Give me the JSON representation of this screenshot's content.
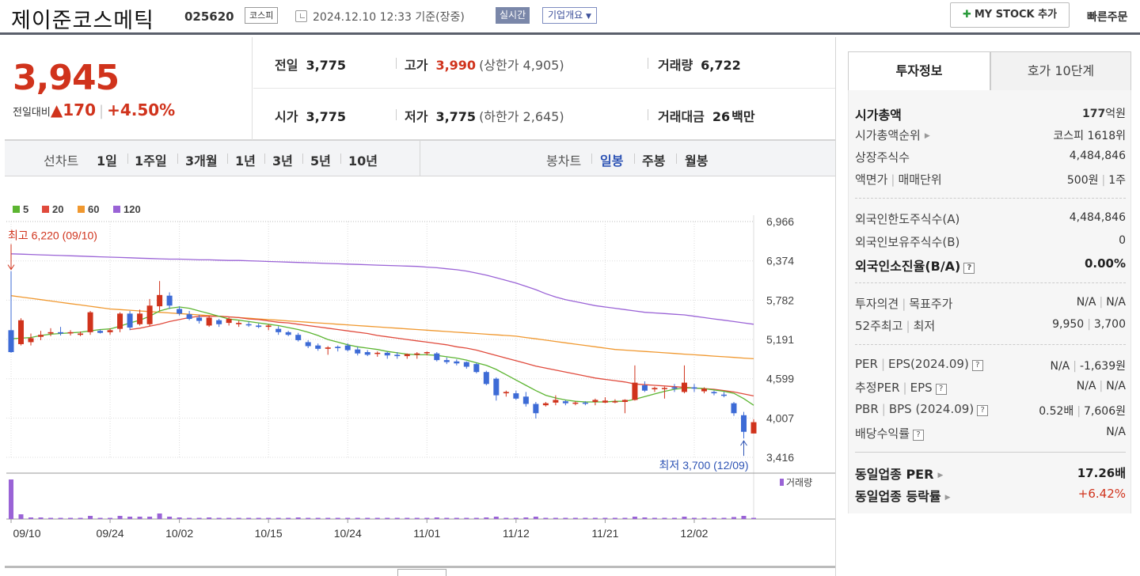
{
  "header": {
    "stock_name": "제이준코스메틱",
    "stock_code": "025620",
    "market": "코스피",
    "datetime": "2024.12.10 12:33",
    "datetime_note": "기준(장중)",
    "realtime_label": "실시간",
    "company_label": "기업개요",
    "mystock_label": "MY STOCK 추가",
    "quick_order_label": "빠른주문"
  },
  "price": {
    "current": "3,945",
    "change_label": "전일대비",
    "change": "170",
    "change_rate": "+4.50%",
    "prev_close_label": "전일",
    "prev_close": "3,775",
    "open_label": "시가",
    "open": "3,775",
    "high_label": "고가",
    "high": "3,990",
    "upper_limit": "(상한가 4,905)",
    "low_label": "저가",
    "low": "3,775",
    "lower_limit": "(하한가 2,645)",
    "volume_label": "거래량",
    "volume": "6,722",
    "amount_label": "거래대금",
    "amount": "26",
    "amount_unit": "백만"
  },
  "period_bar": {
    "line_chart_label": "선차트",
    "line_periods": [
      "1일",
      "1주일",
      "3개월",
      "1년",
      "3년",
      "5년",
      "10년"
    ],
    "candle_label": "봉차트",
    "candle_periods": [
      "일봉",
      "주봉",
      "월봉"
    ],
    "active_candle_index": 0
  },
  "colors": {
    "up": "#d0331c",
    "down": "#3d6bd6",
    "ma5": "#5cb531",
    "ma20": "#e04a3c",
    "ma60": "#f0982f",
    "ma120": "#9a63d6",
    "volume": "#9a63d6"
  },
  "chart_data": {
    "type": "candlestick",
    "legend": [
      "5",
      "20",
      "60",
      "120"
    ],
    "y_ticks": [
      "6,966",
      "6,374",
      "5,782",
      "5,191",
      "4,599",
      "4,007",
      "3,416"
    ],
    "y_tick_values": [
      6966,
      6374,
      5782,
      5191,
      4599,
      4007,
      3416
    ],
    "ylim": [
      3416,
      6966
    ],
    "x_labels": [
      "09/10",
      "09/24",
      "10/02",
      "10/15",
      "10/24",
      "11/01",
      "11/12",
      "11/21",
      "12/02"
    ],
    "x_label_indices": [
      0,
      10,
      17,
      26,
      34,
      42,
      51,
      60,
      69
    ],
    "high_note": "최고 6,220 (09/10)",
    "high_note_index": 0,
    "high_note_value": 6220,
    "low_note": "최저 3,700 (12/09)",
    "low_note_index": 74,
    "low_note_value": 3700,
    "volume_legend": "거래량",
    "candles": [
      [
        5330,
        6220,
        4990,
        5000
      ],
      [
        5120,
        5510,
        5100,
        5480
      ],
      [
        5150,
        5280,
        5100,
        5210
      ],
      [
        5230,
        5320,
        5180,
        5260
      ],
      [
        5280,
        5360,
        5240,
        5300
      ],
      [
        5300,
        5380,
        5250,
        5280
      ],
      [
        5290,
        5330,
        5250,
        5300
      ],
      [
        5260,
        5310,
        5240,
        5280
      ],
      [
        5300,
        5620,
        5260,
        5600
      ],
      [
        5320,
        5340,
        5280,
        5290
      ],
      [
        5300,
        5360,
        5260,
        5330
      ],
      [
        5350,
        5600,
        5300,
        5580
      ],
      [
        5580,
        5620,
        5330,
        5370
      ],
      [
        5420,
        5640,
        5400,
        5580
      ],
      [
        5420,
        5800,
        5390,
        5700
      ],
      [
        5690,
        6070,
        5620,
        5860
      ],
      [
        5850,
        5900,
        5650,
        5700
      ],
      [
        5650,
        5690,
        5550,
        5580
      ],
      [
        5570,
        5620,
        5480,
        5500
      ],
      [
        5520,
        5560,
        5430,
        5470
      ],
      [
        5400,
        5550,
        5380,
        5520
      ],
      [
        5480,
        5500,
        5380,
        5420
      ],
      [
        5440,
        5520,
        5400,
        5500
      ],
      [
        5420,
        5470,
        5380,
        5440
      ],
      [
        5420,
        5460,
        5380,
        5410
      ],
      [
        5400,
        5430,
        5360,
        5380
      ],
      [
        5380,
        5420,
        5330,
        5400
      ],
      [
        5350,
        5390,
        5260,
        5300
      ],
      [
        5300,
        5320,
        5240,
        5260
      ],
      [
        5260,
        5290,
        5160,
        5180
      ],
      [
        5150,
        5180,
        5060,
        5090
      ],
      [
        5100,
        5130,
        5020,
        5050
      ],
      [
        5050,
        5090,
        4960,
        5070
      ],
      [
        5080,
        5100,
        5010,
        5060
      ],
      [
        5100,
        5130,
        5010,
        5030
      ],
      [
        5040,
        5080,
        4950,
        4980
      ],
      [
        5000,
        5030,
        4940,
        4960
      ],
      [
        4980,
        5010,
        4930,
        4990
      ],
      [
        4990,
        5010,
        4900,
        4950
      ],
      [
        4960,
        5000,
        4900,
        4940
      ],
      [
        4940,
        4980,
        4900,
        4970
      ],
      [
        4960,
        5000,
        4900,
        4980
      ],
      [
        4990,
        5010,
        4950,
        5000
      ],
      [
        4980,
        5000,
        4860,
        4880
      ],
      [
        4880,
        4920,
        4820,
        4850
      ],
      [
        4860,
        4890,
        4800,
        4830
      ],
      [
        4850,
        4860,
        4750,
        4780
      ],
      [
        4820,
        4840,
        4680,
        4700
      ],
      [
        4700,
        4720,
        4500,
        4520
      ],
      [
        4600,
        4620,
        4270,
        4350
      ],
      [
        4380,
        4420,
        4330,
        4400
      ],
      [
        4380,
        4420,
        4280,
        4300
      ],
      [
        4330,
        4400,
        4180,
        4220
      ],
      [
        4220,
        4250,
        4000,
        4080
      ],
      [
        4200,
        4250,
        4180,
        4230
      ],
      [
        4240,
        4350,
        4200,
        4280
      ],
      [
        4260,
        4280,
        4200,
        4230
      ],
      [
        4230,
        4260,
        4200,
        4240
      ],
      [
        4240,
        4260,
        4200,
        4230
      ],
      [
        4250,
        4300,
        4200,
        4280
      ],
      [
        4240,
        4320,
        4230,
        4270
      ],
      [
        4250,
        4290,
        4230,
        4260
      ],
      [
        4250,
        4290,
        4080,
        4280
      ],
      [
        4280,
        4800,
        4270,
        4540
      ],
      [
        4500,
        4560,
        4400,
        4420
      ],
      [
        4440,
        4480,
        4400,
        4460
      ],
      [
        4460,
        4480,
        4300,
        4460
      ],
      [
        4470,
        4520,
        4400,
        4450
      ],
      [
        4400,
        4800,
        4380,
        4540
      ],
      [
        4470,
        4520,
        4400,
        4450
      ],
      [
        4410,
        4470,
        4380,
        4450
      ],
      [
        4400,
        4420,
        4350,
        4380
      ],
      [
        4360,
        4400,
        4320,
        4350
      ],
      [
        4230,
        4250,
        4040,
        4080
      ],
      [
        4050,
        4100,
        3700,
        3800
      ],
      [
        3775,
        3990,
        3775,
        3945
      ]
    ],
    "volumes": [
      100,
      12,
      4,
      4,
      3,
      3,
      3,
      3,
      8,
      3,
      3,
      8,
      6,
      6,
      6,
      14,
      6,
      4,
      3,
      3,
      4,
      3,
      3,
      3,
      3,
      3,
      3,
      3,
      3,
      4,
      3,
      3,
      3,
      3,
      3,
      3,
      3,
      3,
      3,
      3,
      3,
      3,
      3,
      4,
      3,
      3,
      3,
      3,
      4,
      6,
      3,
      3,
      4,
      6,
      3,
      3,
      3,
      3,
      3,
      3,
      3,
      3,
      3,
      6,
      4,
      3,
      3,
      3,
      6,
      3,
      3,
      3,
      3,
      5,
      8,
      3
    ],
    "ma5": [
      5200,
      5210,
      5220,
      5250,
      5270,
      5280,
      5290,
      5300,
      5320,
      5340,
      5350,
      5390,
      5440,
      5480,
      5540,
      5620,
      5660,
      5680,
      5660,
      5620,
      5580,
      5540,
      5500,
      5480,
      5460,
      5440,
      5420,
      5400,
      5370,
      5340,
      5300,
      5250,
      5190,
      5150,
      5110,
      5080,
      5060,
      5040,
      5010,
      4990,
      4970,
      4960,
      4960,
      4950,
      4930,
      4910,
      4880,
      4840,
      4800,
      4740,
      4660,
      4580,
      4500,
      4420,
      4350,
      4310,
      4280,
      4260,
      4250,
      4250,
      4250,
      4260,
      4260,
      4290,
      4330,
      4370,
      4410,
      4440,
      4460,
      4460,
      4450,
      4430,
      4410,
      4380,
      4300,
      4200
    ],
    "ma20": [
      null,
      null,
      null,
      null,
      null,
      null,
      null,
      null,
      null,
      null,
      null,
      null,
      5340,
      5360,
      5390,
      5420,
      5460,
      5490,
      5520,
      5540,
      5540,
      5540,
      5530,
      5520,
      5500,
      5490,
      5470,
      5450,
      5440,
      5420,
      5400,
      5380,
      5360,
      5340,
      5320,
      5300,
      5280,
      5250,
      5230,
      5210,
      5190,
      5170,
      5150,
      5130,
      5110,
      5080,
      5060,
      5030,
      4990,
      4950,
      4910,
      4870,
      4830,
      4790,
      4760,
      4730,
      4700,
      4670,
      4640,
      4610,
      4590,
      4570,
      4550,
      4520,
      4510,
      4500,
      4490,
      4480,
      4470,
      4460,
      4450,
      4440,
      4420,
      4400,
      4370,
      4340
    ],
    "ma60": [
      5850,
      5830,
      5810,
      5790,
      5770,
      5750,
      5730,
      5710,
      5690,
      5670,
      5650,
      5640,
      5630,
      5620,
      5610,
      5600,
      5590,
      5580,
      5570,
      5560,
      5550,
      5540,
      5530,
      5520,
      5510,
      5500,
      5490,
      5480,
      5470,
      5460,
      5450,
      5440,
      5430,
      5420,
      5410,
      5400,
      5390,
      5380,
      5370,
      5360,
      5350,
      5340,
      5330,
      5320,
      5310,
      5300,
      5290,
      5280,
      5270,
      5260,
      5250,
      5240,
      5220,
      5200,
      5180,
      5160,
      5140,
      5120,
      5100,
      5080,
      5060,
      5040,
      5030,
      5020,
      5010,
      5000,
      4990,
      4980,
      4970,
      4960,
      4950,
      4940,
      4930,
      4920,
      4910,
      4900
    ],
    "ma120": [
      6480,
      6475,
      6470,
      6465,
      6460,
      6455,
      6450,
      6445,
      6440,
      6435,
      6430,
      6425,
      6420,
      6415,
      6410,
      6405,
      6400,
      6400,
      6395,
      6390,
      6390,
      6385,
      6380,
      6380,
      6375,
      6370,
      6365,
      6360,
      6355,
      6350,
      6345,
      6340,
      6335,
      6330,
      6325,
      6320,
      6315,
      6310,
      6305,
      6300,
      6295,
      6290,
      6280,
      6270,
      6255,
      6240,
      6220,
      6190,
      6160,
      6120,
      6080,
      6040,
      5990,
      5940,
      5880,
      5830,
      5790,
      5760,
      5730,
      5700,
      5680,
      5660,
      5640,
      5620,
      5600,
      5590,
      5580,
      5570,
      5560,
      5540,
      5520,
      5500,
      5480,
      5460,
      5440,
      5420
    ]
  },
  "right_panel": {
    "tab_invest": "투자정보",
    "tab_hoga": "호가 10단계",
    "market_cap_label": "시가총액",
    "market_cap": "177",
    "market_cap_unit": "억원",
    "market_cap_rank_label": "시가총액순위",
    "market_cap_rank": "코스피 1618위",
    "listed_shares_label": "상장주식수",
    "listed_shares": "4,484,846",
    "par_label": "액면가",
    "trade_unit_label": "매매단위",
    "par_value": "500원",
    "trade_unit": "1주",
    "foreign_limit_label": "외국인한도주식수(A)",
    "foreign_limit": "4,484,846",
    "foreign_hold_label": "외국인보유주식수(B)",
    "foreign_hold": "0",
    "foreign_ratio_label": "외국인소진율(B/A)",
    "foreign_ratio": "0.00%",
    "opinion_label": "투자의견",
    "target_label": "목표주가",
    "opinion": "N/A",
    "target": "N/A",
    "w52_high_label": "52주최고",
    "w52_low_label": "최저",
    "w52_high": "9,950",
    "w52_low": "3,700",
    "per_label": "PER",
    "eps_label": "EPS(2024.09)",
    "per": "N/A",
    "eps": "-1,639원",
    "est_per_label": "추정PER",
    "est_eps_label": "EPS",
    "est_per": "N/A",
    "est_eps": "N/A",
    "pbr_label": "PBR",
    "bps_label": "BPS (2024.09)",
    "pbr": "0.52배",
    "bps": "7,606원",
    "dividend_label": "배당수익률",
    "dividend": "N/A",
    "industry_per_label": "동일업종 PER",
    "industry_per": "17.26배",
    "industry_change_label": "동일업종 등락률",
    "industry_change": "+6.42%"
  }
}
